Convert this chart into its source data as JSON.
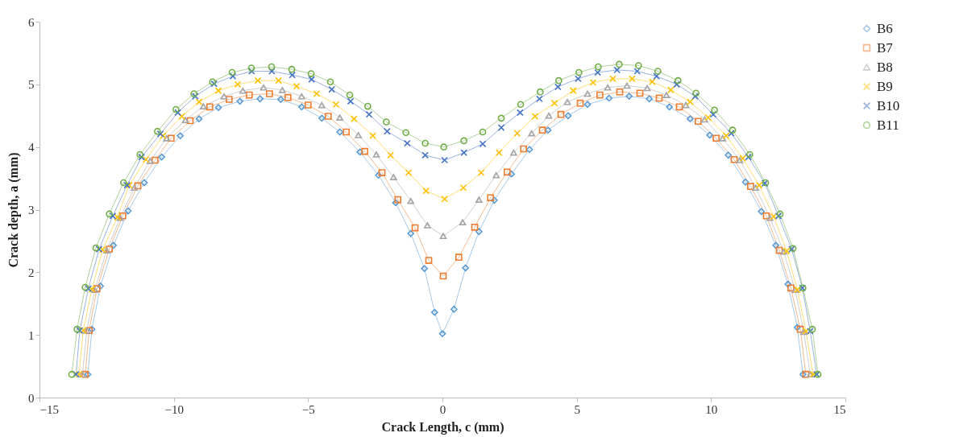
{
  "chart_data": {
    "type": "line",
    "xlabel": "Crack Length, c (mm)",
    "ylabel": "Crack depth, a (mm)",
    "xlim": [
      -15,
      15
    ],
    "xticks": [
      -15,
      -10,
      -5,
      0,
      5,
      10,
      15
    ],
    "ylim": [
      0,
      6
    ],
    "yticks": [
      0,
      1,
      2,
      3,
      4,
      5,
      6
    ],
    "grid": false,
    "legend": "right",
    "line_style": "solid",
    "series": [
      {
        "name": "B6",
        "color": "#5b9bd5",
        "marker": "diamond",
        "x": [
          -13.2,
          -13.05,
          -12.73,
          -12.25,
          -11.7,
          -11.1,
          -10.45,
          -9.76,
          -9.06,
          -8.34,
          -7.54,
          -6.79,
          -6.02,
          -5.24,
          -4.49,
          -3.82,
          -3.07,
          -2.38,
          -1.74,
          -1.18,
          -0.67,
          -0.29,
          0.0,
          0.43,
          0.86,
          1.36,
          1.93,
          2.57,
          3.24,
          3.93,
          4.68,
          5.4,
          6.2,
          6.95,
          7.7,
          8.45,
          9.22,
          9.95,
          10.64,
          11.28,
          11.87,
          12.41,
          12.86,
          13.21,
          13.42
        ],
        "values": [
          0.37,
          1.09,
          1.78,
          2.43,
          2.98,
          3.43,
          3.84,
          4.18,
          4.45,
          4.63,
          4.73,
          4.77,
          4.76,
          4.64,
          4.46,
          4.24,
          3.92,
          3.55,
          3.11,
          2.62,
          2.06,
          1.36,
          1.02,
          1.41,
          2.07,
          2.65,
          3.15,
          3.57,
          3.96,
          4.27,
          4.5,
          4.68,
          4.78,
          4.81,
          4.77,
          4.64,
          4.45,
          4.19,
          3.87,
          3.44,
          2.97,
          2.43,
          1.81,
          1.12,
          0.37
        ]
      },
      {
        "name": "B7",
        "color": "#ed7d31",
        "marker": "square",
        "x": [
          -13.3,
          -13.15,
          -12.86,
          -12.4,
          -11.9,
          -11.34,
          -10.7,
          -10.1,
          -9.39,
          -8.66,
          -7.94,
          -7.19,
          -6.44,
          -5.75,
          -5.0,
          -4.25,
          -3.58,
          -2.89,
          -2.25,
          -1.66,
          -1.02,
          -0.51,
          0.03,
          0.61,
          1.2,
          1.79,
          2.41,
          3.02,
          3.72,
          4.41,
          5.13,
          5.86,
          6.6,
          7.35,
          8.07,
          8.82,
          9.52,
          10.19,
          10.86,
          11.47,
          12.06,
          12.54,
          12.97,
          13.32,
          13.53
        ],
        "values": [
          0.37,
          1.07,
          1.74,
          2.37,
          2.9,
          3.38,
          3.79,
          4.14,
          4.42,
          4.64,
          4.76,
          4.83,
          4.85,
          4.79,
          4.67,
          4.49,
          4.24,
          3.93,
          3.59,
          3.16,
          2.71,
          2.19,
          1.94,
          2.24,
          2.72,
          3.19,
          3.6,
          3.97,
          4.27,
          4.52,
          4.7,
          4.83,
          4.88,
          4.86,
          4.78,
          4.64,
          4.41,
          4.14,
          3.8,
          3.37,
          2.9,
          2.35,
          1.75,
          1.09,
          0.37
        ]
      },
      {
        "name": "B8",
        "color": "#a5a5a5",
        "marker": "triangle",
        "x": [
          -13.4,
          -13.24,
          -12.94,
          -12.5,
          -12.0,
          -11.47,
          -10.88,
          -10.27,
          -9.57,
          -8.9,
          -8.13,
          -7.43,
          -6.66,
          -5.96,
          -5.24,
          -4.49,
          -3.82,
          -3.13,
          -2.46,
          -1.82,
          -1.18,
          -0.56,
          0.03,
          0.75,
          1.36,
          2.0,
          2.65,
          3.32,
          3.96,
          4.65,
          5.4,
          6.15,
          6.87,
          7.62,
          8.34,
          9.06,
          9.76,
          10.43,
          11.07,
          11.66,
          12.19,
          12.7,
          13.13,
          13.45,
          13.69
        ],
        "values": [
          0.37,
          1.07,
          1.72,
          2.35,
          2.87,
          3.35,
          3.78,
          4.14,
          4.43,
          4.65,
          4.81,
          4.9,
          4.95,
          4.91,
          4.81,
          4.67,
          4.47,
          4.19,
          3.88,
          3.52,
          3.14,
          2.75,
          2.58,
          2.8,
          3.16,
          3.55,
          3.91,
          4.22,
          4.5,
          4.72,
          4.85,
          4.95,
          4.98,
          4.94,
          4.83,
          4.67,
          4.44,
          4.14,
          3.79,
          3.35,
          2.87,
          2.33,
          1.72,
          1.05,
          0.37
        ]
      },
      {
        "name": "B9",
        "color": "#ffc000",
        "marker": "cross",
        "x": [
          -13.53,
          -13.37,
          -13.05,
          -12.65,
          -12.1,
          -11.66,
          -11.04,
          -10.4,
          -9.7,
          -9.06,
          -8.34,
          -7.62,
          -6.87,
          -6.1,
          -5.43,
          -4.68,
          -3.96,
          -3.29,
          -2.59,
          -1.93,
          -1.26,
          -0.61,
          0.08,
          0.78,
          1.44,
          2.11,
          2.78,
          3.45,
          4.17,
          4.87,
          5.61,
          6.34,
          7.06,
          7.81,
          8.5,
          9.22,
          9.89,
          10.56,
          11.18,
          11.79,
          12.33,
          12.81,
          13.21,
          13.53,
          13.8
        ],
        "values": [
          0.37,
          1.07,
          1.73,
          2.36,
          2.88,
          3.39,
          3.8,
          4.18,
          4.49,
          4.72,
          4.9,
          5.0,
          5.06,
          5.06,
          4.97,
          4.85,
          4.68,
          4.45,
          4.18,
          3.87,
          3.59,
          3.3,
          3.17,
          3.35,
          3.59,
          3.91,
          4.22,
          4.49,
          4.7,
          4.9,
          5.03,
          5.09,
          5.09,
          5.04,
          4.91,
          4.72,
          4.47,
          4.18,
          3.82,
          3.39,
          2.89,
          2.34,
          1.72,
          1.06,
          0.37
        ]
      },
      {
        "name": "B10",
        "color": "#4472c4",
        "marker": "cross",
        "x": [
          -13.64,
          -13.5,
          -13.18,
          -12.78,
          -12.27,
          -11.74,
          -11.2,
          -10.5,
          -9.85,
          -9.2,
          -8.5,
          -7.8,
          -7.1,
          -6.35,
          -5.59,
          -4.87,
          -4.12,
          -3.42,
          -2.73,
          -2.06,
          -1.31,
          -0.64,
          0.08,
          0.8,
          1.5,
          2.19,
          2.89,
          3.61,
          4.3,
          5.05,
          5.78,
          6.5,
          7.25,
          7.97,
          8.72,
          9.41,
          10.08,
          10.75,
          11.39,
          12.0,
          12.51,
          13.0,
          13.4,
          13.69,
          13.93
        ],
        "values": [
          0.37,
          1.07,
          1.74,
          2.37,
          2.9,
          3.39,
          3.84,
          4.21,
          4.55,
          4.81,
          5.01,
          5.13,
          5.21,
          5.21,
          5.15,
          5.08,
          4.92,
          4.73,
          4.52,
          4.25,
          4.06,
          3.87,
          3.79,
          3.91,
          4.05,
          4.31,
          4.55,
          4.77,
          4.96,
          5.09,
          5.19,
          5.23,
          5.21,
          5.13,
          5.0,
          4.81,
          4.52,
          4.22,
          3.84,
          3.42,
          2.9,
          2.37,
          1.75,
          1.06,
          0.37
        ]
      },
      {
        "name": "B11",
        "color": "#70ad47",
        "marker": "circle",
        "x": [
          -13.8,
          -13.6,
          -13.3,
          -12.9,
          -12.4,
          -11.87,
          -11.26,
          -10.61,
          -9.92,
          -9.25,
          -8.56,
          -7.83,
          -7.11,
          -6.36,
          -5.61,
          -4.89,
          -4.17,
          -3.45,
          -2.78,
          -2.09,
          -1.36,
          -0.64,
          0.05,
          0.8,
          1.5,
          2.19,
          2.91,
          3.64,
          4.33,
          5.08,
          5.8,
          6.58,
          7.3,
          8.02,
          8.77,
          9.44,
          10.13,
          10.8,
          11.44,
          12.03,
          12.57,
          13.05,
          13.42,
          13.77,
          13.98
        ],
        "values": [
          0.37,
          1.09,
          1.76,
          2.39,
          2.93,
          3.43,
          3.88,
          4.25,
          4.6,
          4.85,
          5.04,
          5.19,
          5.26,
          5.28,
          5.24,
          5.17,
          5.04,
          4.83,
          4.65,
          4.4,
          4.23,
          4.06,
          4.0,
          4.1,
          4.24,
          4.46,
          4.68,
          4.88,
          5.06,
          5.19,
          5.28,
          5.32,
          5.3,
          5.21,
          5.06,
          4.86,
          4.59,
          4.27,
          3.88,
          3.43,
          2.93,
          2.38,
          1.75,
          1.09,
          0.37
        ]
      }
    ]
  }
}
